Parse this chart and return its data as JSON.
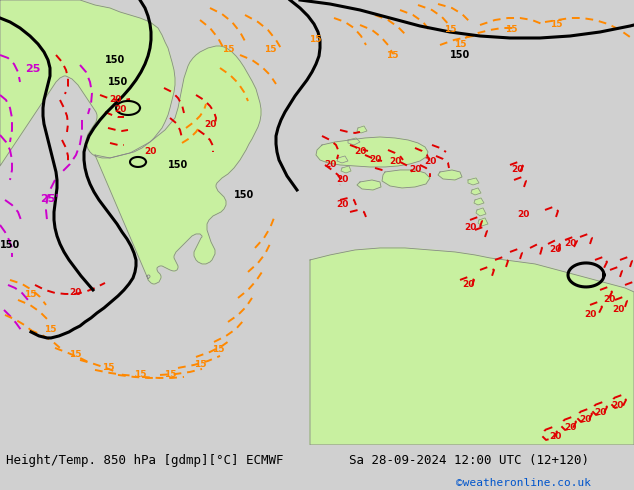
{
  "title_left": "Height/Temp. 850 hPa [gdmp][°C] ECMWF",
  "title_right": "Sa 28-09-2024 12:00 UTC (12+120)",
  "copyright": "©weatheronline.co.uk",
  "bg_color": "#d0d0d0",
  "land_color": "#c8f0a0",
  "land_border_color": "#888888",
  "black_color": "#000000",
  "red_color": "#e00000",
  "orange_color": "#ff8800",
  "magenta_color": "#cc00cc",
  "bottom_bar_color": "#e8e8e8",
  "text_color": "#000000",
  "copyright_color": "#0055cc",
  "fig_width": 6.34,
  "fig_height": 4.9,
  "dpi": 100
}
